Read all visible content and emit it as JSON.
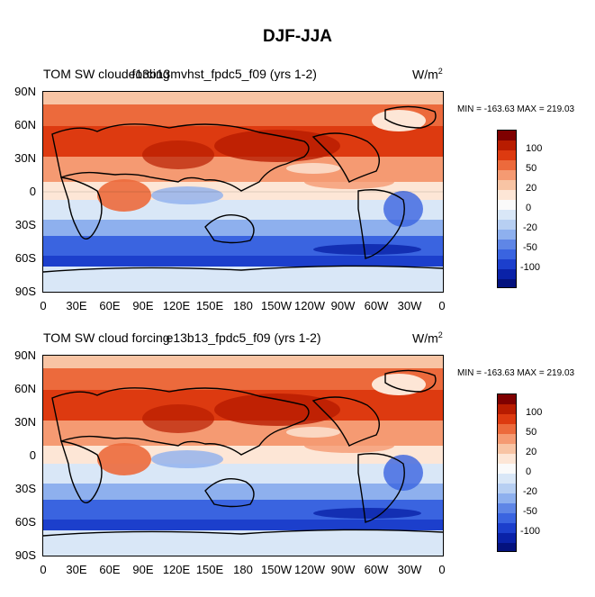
{
  "figure_title": "DJF-JJA",
  "panels": [
    {
      "name": "top",
      "title_left": "TOM SW cloud forcing",
      "title_case": "e13b13mvhst_fpdc5_f09 (yrs 1-2)",
      "units": "W/m",
      "units_exp": "2",
      "minmax": "MIN = -163.63 MAX = 219.03"
    },
    {
      "name": "bottom",
      "title_left": "TOM SW cloud forcing",
      "title_case": "e13b13_fpdc5_f09 (yrs 1-2)",
      "units": "W/m",
      "units_exp": "2",
      "minmax": "MIN = -163.63 MAX = 219.03"
    }
  ],
  "lat_ticks": [
    "90N",
    "60N",
    "30N",
    "0",
    "30S",
    "60S",
    "90S"
  ],
  "lon_ticks": [
    "0",
    "30E",
    "60E",
    "90E",
    "120E",
    "150E",
    "180",
    "150W",
    "120W",
    "90W",
    "60W",
    "30W",
    "0"
  ],
  "colorbar": {
    "labels": [
      "100",
      "50",
      "20",
      "0",
      "-20",
      "-50",
      "-100"
    ],
    "colors": [
      "#7f0000",
      "#b81c00",
      "#dd3a10",
      "#ec6a3c",
      "#f59a72",
      "#f8c4a4",
      "#fde6d6",
      "#fafafa",
      "#d9e7f7",
      "#b7cff2",
      "#8eb0ee",
      "#5f86e6",
      "#3a64e0",
      "#1c3fcc",
      "#0a22a8",
      "#04127e"
    ]
  },
  "chart_data": {
    "type": "heatmap",
    "title": "DJF-JJA",
    "variable": "TOM SW cloud forcing",
    "units": "W/m2",
    "x_ticks": [
      "0",
      "30E",
      "60E",
      "90E",
      "120E",
      "150E",
      "180",
      "150W",
      "120W",
      "90W",
      "60W",
      "30W",
      "0"
    ],
    "y_ticks": [
      "90N",
      "60N",
      "30N",
      "0",
      "30S",
      "60S",
      "90S"
    ],
    "xlim": [
      0,
      360
    ],
    "ylim": [
      -90,
      90
    ],
    "colorbar_levels": [
      -100,
      -50,
      -20,
      0,
      20,
      50,
      100
    ],
    "min": -163.63,
    "max": 219.03,
    "cases": [
      "e13b13mvhst_fpdc5_f09 (yrs 1-2)",
      "e13b13_fpdc5_f09 (yrs 1-2)"
    ]
  }
}
